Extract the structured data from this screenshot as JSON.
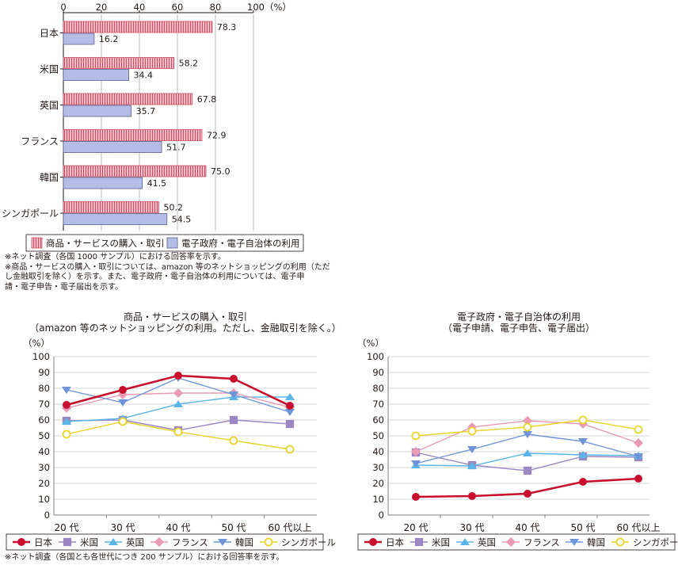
{
  "colors": {
    "text": "#231815",
    "bar_grid": "#aaaaaa",
    "line_grid": "#c8c8c8",
    "bar_a_fill": "#f4b8c6",
    "bar_a_stripe": "#c8505f",
    "bar_b_fill": "#b5bde6",
    "bar_b_stroke": "#5a5f8c"
  },
  "notes": {
    "top": [
      "※ネット調査（各国 1000 サンプル）における回答率を示す。",
      "※商品・サービスの購入・取引については、amazon 等のネットショッピングの利用（ただ",
      "し金融取引を除く）を示す。また、電子政府・電子自治体の利用については、電子申",
      "請・電子申告・電子届出を示す。"
    ],
    "bottom": "※ネット調査（各国とも各世代につき 200 サンプル）における回答率を示す。"
  },
  "chart_data": [
    {
      "type": "bar",
      "orientation": "horizontal",
      "categories": [
        "日本",
        "米国",
        "英国",
        "フランス",
        "韓国",
        "シンガポール"
      ],
      "series": [
        {
          "name": "商品・サービスの購入・取引",
          "values": [
            78.3,
            58.2,
            67.8,
            72.9,
            75.0,
            50.2
          ],
          "labels": [
            "78.3",
            "58.2",
            "67.8",
            "72.9",
            "75.0",
            "50.2"
          ],
          "color": "#f4b8c6",
          "pattern": "vertical-stripes"
        },
        {
          "name": "電子政府・電子自治体の利用",
          "values": [
            16.2,
            34.4,
            35.7,
            51.7,
            41.5,
            54.5
          ],
          "labels": [
            "16.2",
            "34.4",
            "35.7",
            "51.7",
            "41.5",
            "54.5"
          ],
          "color": "#b5bde6"
        }
      ],
      "xlim": [
        0,
        100
      ],
      "xticks": [
        "0",
        "20",
        "40",
        "60",
        "80",
        "100（%）"
      ],
      "axis_position": "top",
      "legend_position": "bottom"
    },
    {
      "type": "line",
      "title": "商品・サービスの購入・取引",
      "subtitle": "（amazon 等のネットショッピングの利用。ただし、金融取引を除く。）",
      "ylabel": "（%）",
      "categories": [
        "20 代",
        "30 代",
        "40 代",
        "50 代",
        "60 代以上"
      ],
      "ylim": [
        0,
        100
      ],
      "yticks": [
        "0",
        "10",
        "20",
        "30",
        "40",
        "50",
        "60",
        "70",
        "80",
        "90",
        "100"
      ],
      "grid": true,
      "legend_position": "bottom",
      "series": [
        {
          "name": "日本",
          "values": [
            69.5,
            79,
            88,
            86,
            69
          ],
          "color": "#c8102e",
          "marker": "circle-filled",
          "bold": true
        },
        {
          "name": "米国",
          "values": [
            59.5,
            60,
            53.5,
            60,
            57.5
          ],
          "color": "#9b87c1",
          "marker": "square"
        },
        {
          "name": "英国",
          "values": [
            59,
            61,
            70,
            74.5,
            74.5
          ],
          "color": "#5bb5e6",
          "marker": "triangle-up"
        },
        {
          "name": "フランス",
          "values": [
            67.5,
            76,
            77,
            77,
            68
          ],
          "color": "#e89ab4",
          "marker": "diamond"
        },
        {
          "name": "韓国",
          "values": [
            79,
            71,
            86.5,
            76,
            65
          ],
          "color": "#6f95d8",
          "marker": "triangle-down"
        },
        {
          "name": "シンガポール",
          "values": [
            51,
            59,
            52.5,
            47,
            41.5
          ],
          "color": "#e8d42a",
          "marker": "circle-open"
        }
      ]
    },
    {
      "type": "line",
      "title": "電子政府・電子自治体の利用",
      "subtitle": "（電子申請、電子申告、電子届出）",
      "ylabel": "（%）",
      "categories": [
        "20 代",
        "30 代",
        "40 代",
        "50 代",
        "60 代以上"
      ],
      "ylim": [
        0,
        100
      ],
      "yticks": [
        "0",
        "10",
        "20",
        "30",
        "40",
        "50",
        "60",
        "70",
        "80",
        "90",
        "100"
      ],
      "grid": true,
      "legend_position": "bottom",
      "series": [
        {
          "name": "日本",
          "values": [
            11.5,
            12,
            13.5,
            21,
            23
          ],
          "color": "#c8102e",
          "marker": "circle-filled",
          "bold": true
        },
        {
          "name": "米国",
          "values": [
            39.5,
            31.5,
            28,
            37,
            36.5
          ],
          "color": "#9b87c1",
          "marker": "square"
        },
        {
          "name": "英国",
          "values": [
            31.5,
            31,
            39,
            38,
            37.5
          ],
          "color": "#5bb5e6",
          "marker": "triangle-up"
        },
        {
          "name": "フランス",
          "values": [
            40,
            55.5,
            59.5,
            57.5,
            45.5
          ],
          "color": "#e89ab4",
          "marker": "diamond"
        },
        {
          "name": "韓国",
          "values": [
            32.5,
            41.5,
            51,
            46.5,
            37
          ],
          "color": "#6f95d8",
          "marker": "triangle-down"
        },
        {
          "name": "シンガポール",
          "values": [
            50,
            53,
            55.5,
            60,
            54
          ],
          "color": "#e8d42a",
          "marker": "circle-open"
        }
      ]
    }
  ]
}
